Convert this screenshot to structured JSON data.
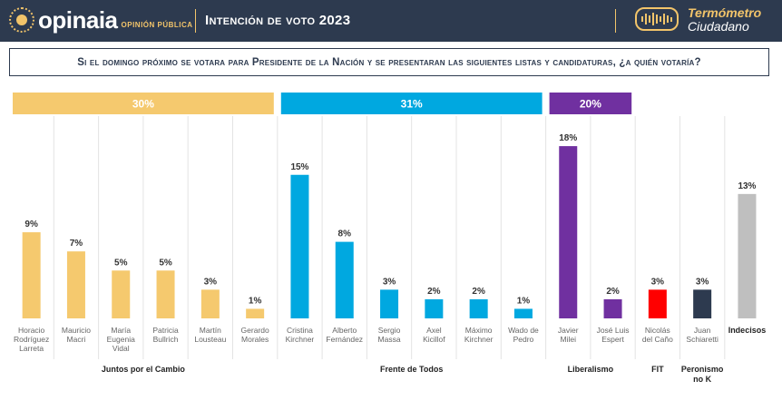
{
  "header": {
    "logo_name": "opinaia",
    "logo_sub": "OPINIÓN PÚBLICA",
    "title": "Intención de voto 2023",
    "brand_line1": "Termómetro",
    "brand_line2": "Ciudadano"
  },
  "question": "Si el domingo próximo se votara para Presidente de la Nación y se presentaran las siguientes listas y candidaturas, ¿a quién votaría?",
  "colors": {
    "juntos": "#f5c96e",
    "frente": "#00a8e0",
    "liberalismo": "#7030a0",
    "fit": "#ff0000",
    "peronismo": "#2d3a4f",
    "indecisos": "#bfbfbf"
  },
  "chart_data": {
    "type": "bar",
    "ylim": [
      0,
      20
    ],
    "categories": [
      "Horacio Rodríguez Larreta",
      "Mauricio Macri",
      "María Eugenia Vidal",
      "Patricia Bullrich",
      "Martín Lousteau",
      "Gerardo Morales",
      "Cristina Kirchner",
      "Alberto Fernández",
      "Sergio Massa",
      "Axel Kicillof",
      "Máximo Kirchner",
      "Wado de Pedro",
      "Javier Milei",
      "José Luis Espert",
      "Nicolás del Caño",
      "Juan Schiaretti",
      "Indecisos"
    ],
    "category_lines": [
      [
        "Horacio",
        "Rodríguez",
        "Larreta"
      ],
      [
        "Mauricio",
        "Macri"
      ],
      [
        "María",
        "Eugenia",
        "Vidal"
      ],
      [
        "Patricia",
        "Bullrich"
      ],
      [
        "Martín",
        "Lousteau"
      ],
      [
        "Gerardo",
        "Morales"
      ],
      [
        "Cristina",
        "Kirchner"
      ],
      [
        "Alberto",
        "Fernández"
      ],
      [
        "Sergio",
        "Massa"
      ],
      [
        "Axel",
        "Kicillof"
      ],
      [
        "Máximo",
        "Kirchner"
      ],
      [
        "Wado de",
        "Pedro"
      ],
      [
        "Javier",
        "Milei"
      ],
      [
        "José Luis",
        "Espert"
      ],
      [
        "Nicolás",
        "del Caño"
      ],
      [
        "Juan",
        "Schiaretti"
      ],
      [
        "Indecisos"
      ]
    ],
    "values": [
      9,
      7,
      5,
      5,
      3,
      1,
      15,
      8,
      3,
      2,
      2,
      1,
      18,
      2,
      3,
      3,
      13
    ],
    "value_labels": [
      "9%",
      "7%",
      "5%",
      "5%",
      "3%",
      "1%",
      "15%",
      "8%",
      "3%",
      "2%",
      "2%",
      "1%",
      "18%",
      "2%",
      "3%",
      "3%",
      "13%"
    ],
    "bar_groups": [
      "juntos",
      "juntos",
      "juntos",
      "juntos",
      "juntos",
      "juntos",
      "frente",
      "frente",
      "frente",
      "frente",
      "frente",
      "frente",
      "liberalismo",
      "liberalismo",
      "fit",
      "peronismo",
      "indecisos"
    ],
    "groups": [
      {
        "key": "juntos",
        "name_lines": [
          "Juntos por el Cambio"
        ],
        "total": "30%",
        "first": 0,
        "last": 5
      },
      {
        "key": "frente",
        "name_lines": [
          "Frente de Todos"
        ],
        "total": "31%",
        "first": 6,
        "last": 11
      },
      {
        "key": "liberalismo",
        "name_lines": [
          "Liberalismo"
        ],
        "total": "20%",
        "first": 12,
        "last": 13
      },
      {
        "key": "fit",
        "name_lines": [
          "FIT"
        ],
        "total": "",
        "first": 14,
        "last": 14
      },
      {
        "key": "peronismo",
        "name_lines": [
          "Peronismo",
          "no K"
        ],
        "total": "",
        "first": 15,
        "last": 15
      }
    ],
    "grid": false,
    "legend": "none"
  }
}
